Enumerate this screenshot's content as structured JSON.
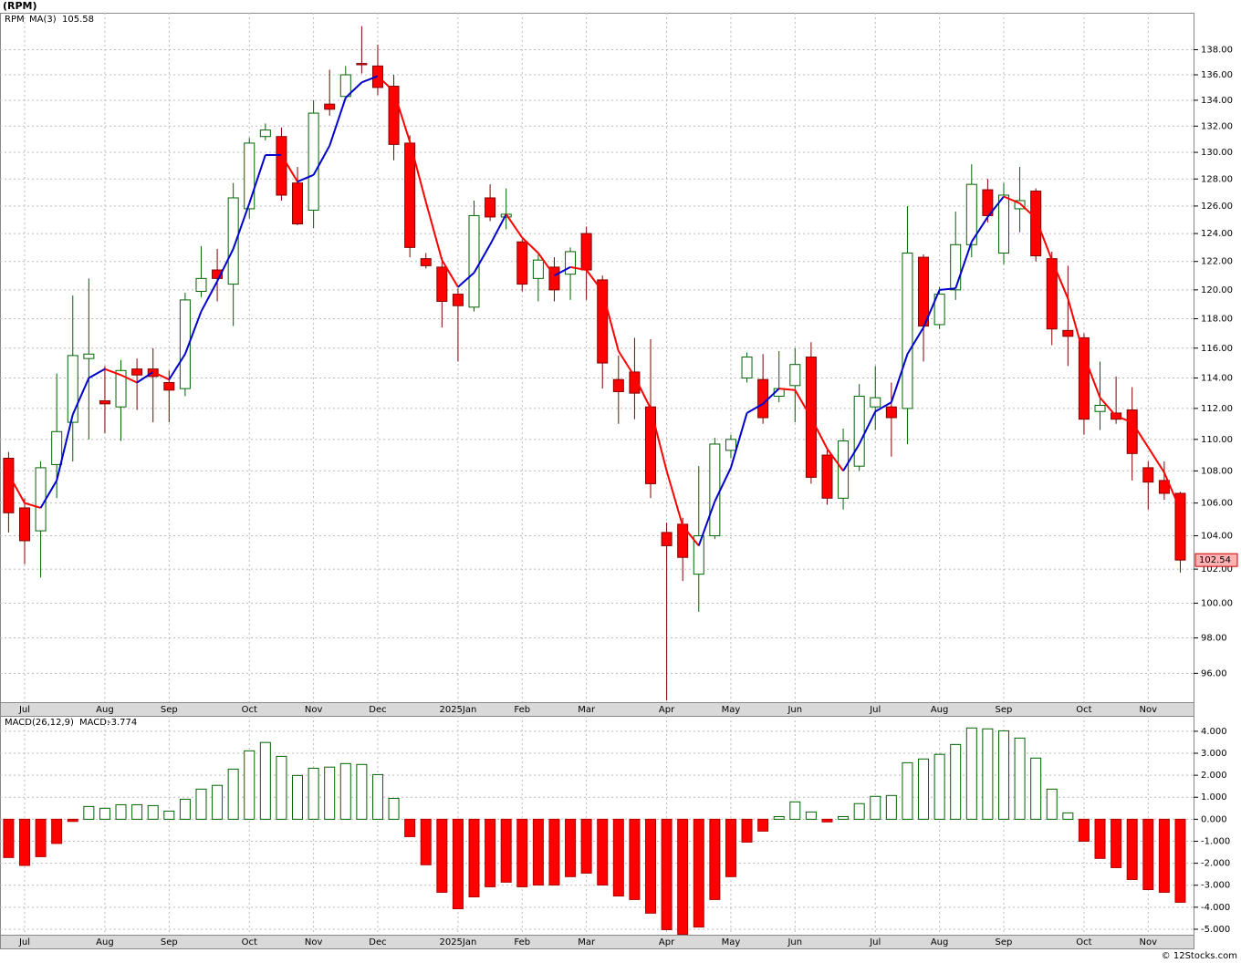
{
  "footer": "© 12Stocks.com",
  "chart_data": [
    {
      "type": "candlestick",
      "title": "(RPM)",
      "symbol": "RPM",
      "symbol_color": "#006400",
      "log_scale": true,
      "grid": true,
      "up_color": "#006400",
      "down_color": "#ff0000",
      "categories": [
        null,
        "Jul",
        null,
        null,
        null,
        null,
        "Aug",
        null,
        null,
        null,
        "Sep",
        null,
        null,
        null,
        null,
        "Oct",
        null,
        null,
        null,
        "Nov",
        null,
        null,
        null,
        "Dec",
        null,
        null,
        null,
        null,
        "2025Jan",
        null,
        null,
        null,
        "Feb",
        null,
        null,
        null,
        "Mar",
        null,
        null,
        null,
        null,
        "Apr",
        null,
        null,
        null,
        "May",
        null,
        null,
        null,
        "Jun",
        null,
        null,
        null,
        null,
        "Jul",
        null,
        null,
        null,
        "Aug",
        null,
        null,
        null,
        "Sep",
        null,
        null,
        null,
        null,
        "Oct",
        null,
        null,
        null,
        "Nov",
        null,
        null
      ],
      "open": [
        108.8,
        105.7,
        104.3,
        108.4,
        111.1,
        115.3,
        112.5,
        112.1,
        114.6,
        114.6,
        113.7,
        113.3,
        119.9,
        121.4,
        120.4,
        125.8,
        131.2,
        131.2,
        127.7,
        125.7,
        133.7,
        134.3,
        136.9,
        136.7,
        135.1,
        130.7,
        122.2,
        121.6,
        119.7,
        118.8,
        126.6,
        125.2,
        123.4,
        120.8,
        121.6,
        121.1,
        124.0,
        120.7,
        113.9,
        114.4,
        112.1,
        104.2,
        104.7,
        101.7,
        104.0,
        109.3,
        114.0,
        113.9,
        112.8,
        113.5,
        115.4,
        109.0,
        106.3,
        108.3,
        112.1,
        112.1,
        112.0,
        122.3,
        117.6,
        120.0,
        123.2,
        127.2,
        122.6,
        125.8,
        127.1,
        122.2,
        117.2,
        116.7,
        111.8,
        111.7,
        111.9,
        108.2,
        107.4,
        106.6
      ],
      "high": [
        109.2,
        106.3,
        108.6,
        114.3,
        119.6,
        120.8,
        114.8,
        115.2,
        115.3,
        116.0,
        114.5,
        119.8,
        123.1,
        122.9,
        127.7,
        131.1,
        132.2,
        131.9,
        128.9,
        134.0,
        136.4,
        136.7,
        139.9,
        138.4,
        136.0,
        131.3,
        122.6,
        122.3,
        120.1,
        126.4,
        127.6,
        127.3,
        123.6,
        122.5,
        122.3,
        123.0,
        124.5,
        121.0,
        115.5,
        116.7,
        116.6,
        104.8,
        105.1,
        108.3,
        110.1,
        110.3,
        115.7,
        115.6,
        115.8,
        116.0,
        116.4,
        109.3,
        110.7,
        113.6,
        114.8,
        113.7,
        126.0,
        122.5,
        120.2,
        125.6,
        129.1,
        128.0,
        127.7,
        128.9,
        127.3,
        122.7,
        121.7,
        117.0,
        115.1,
        114.1,
        113.4,
        108.6,
        108.6,
        106.7
      ],
      "low": [
        104.2,
        102.3,
        101.5,
        106.3,
        108.6,
        110.0,
        110.4,
        109.9,
        111.9,
        111.1,
        111.1,
        112.8,
        119.5,
        119.2,
        117.5,
        125.1,
        130.9,
        126.4,
        124.6,
        124.4,
        132.8,
        134.0,
        136.1,
        134.4,
        129.4,
        122.3,
        121.5,
        117.4,
        115.1,
        118.5,
        124.9,
        124.3,
        119.9,
        119.2,
        119.2,
        119.3,
        119.3,
        113.3,
        111.0,
        111.3,
        106.3,
        94.5,
        101.3,
        99.5,
        103.8,
        108.8,
        113.7,
        111.0,
        112.4,
        111.1,
        107.2,
        105.9,
        105.6,
        108.0,
        110.6,
        108.9,
        109.7,
        115.1,
        117.3,
        119.3,
        122.3,
        124.8,
        121.8,
        124.1,
        122.0,
        116.2,
        114.8,
        110.3,
        110.6,
        111.0,
        107.4,
        105.6,
        106.2,
        101.8
      ],
      "close": [
        105.4,
        103.7,
        108.2,
        110.5,
        115.5,
        115.6,
        112.3,
        114.5,
        114.2,
        114.1,
        113.2,
        119.3,
        120.8,
        120.8,
        126.6,
        130.7,
        131.7,
        126.8,
        124.7,
        133.0,
        133.3,
        136.0,
        136.8,
        135.0,
        130.6,
        123.0,
        121.7,
        119.2,
        118.9,
        125.3,
        125.2,
        125.4,
        120.4,
        122.1,
        120.0,
        122.7,
        121.4,
        115.0,
        113.1,
        113.0,
        107.2,
        103.4,
        102.7,
        104.0,
        109.7,
        110.0,
        115.4,
        111.4,
        113.3,
        114.9,
        107.6,
        106.3,
        109.9,
        112.8,
        112.7,
        111.4,
        122.6,
        117.5,
        119.7,
        123.2,
        127.6,
        125.3,
        126.8,
        126.4,
        122.4,
        117.3,
        116.8,
        111.3,
        112.2,
        111.3,
        109.1,
        107.3,
        106.6,
        102.54
      ],
      "series": [
        {
          "name": "MA(3)",
          "color": "#0000cc",
          "down_color": "#ff0000",
          "values": [
            107.8,
            106.0,
            105.7,
            107.4,
            111.6,
            114.0,
            114.6,
            114.2,
            113.7,
            114.4,
            113.9,
            115.6,
            118.5,
            120.6,
            122.9,
            126.2,
            129.8,
            129.8,
            127.8,
            128.3,
            130.5,
            134.2,
            135.4,
            135.9,
            134.7,
            130.8,
            126.3,
            122.1,
            120.2,
            121.2,
            123.2,
            125.4,
            123.7,
            122.6,
            121.0,
            121.6,
            121.4,
            119.9,
            115.8,
            114.1,
            112.0,
            108.0,
            104.6,
            103.4,
            106.1,
            108.2,
            111.7,
            112.3,
            113.3,
            113.2,
            111.4,
            109.4,
            108.0,
            109.7,
            111.8,
            112.4,
            115.6,
            117.4,
            120.0,
            120.1,
            123.4,
            125.2,
            126.7,
            126.2,
            125.1,
            122.1,
            119.4,
            115.5,
            112.7,
            111.5,
            111.1,
            109.5,
            107.9,
            105.58
          ]
        }
      ],
      "ylim": [
        94.4,
        141
      ],
      "yticks": [
        {
          "value": 96,
          "label": "96.00"
        },
        {
          "value": 98,
          "label": "98.00"
        },
        {
          "value": 100,
          "label": "100.00"
        },
        {
          "value": 102,
          "label": "102.00"
        },
        {
          "value": 104,
          "label": "104.00"
        },
        {
          "value": 106,
          "label": "106.00"
        },
        {
          "value": 108,
          "label": "108.00"
        },
        {
          "value": 110,
          "label": "110.00"
        },
        {
          "value": 112,
          "label": "112.00"
        },
        {
          "value": 114,
          "label": "114.00"
        },
        {
          "value": 116,
          "label": "116.00"
        },
        {
          "value": 118,
          "label": "118.00"
        },
        {
          "value": 120,
          "label": "120.00"
        },
        {
          "value": 122,
          "label": "122.00"
        },
        {
          "value": 124,
          "label": "124.00"
        },
        {
          "value": 126,
          "label": "126.00"
        },
        {
          "value": 128,
          "label": "128.00"
        },
        {
          "value": 130,
          "label": "130.00"
        },
        {
          "value": 132,
          "label": "132.00"
        },
        {
          "value": 134,
          "label": "134.00"
        },
        {
          "value": 136,
          "label": "136.00"
        },
        {
          "value": 138,
          "label": "138.00"
        }
      ]
    },
    {
      "type": "bar",
      "title": "MACD(26,12,9)",
      "series_name": "MACD:",
      "series_color": "#0000cc",
      "grid": true,
      "up_color": "#006400",
      "down_color": "#ff0000",
      "values": [
        -1.74,
        -2.1,
        -1.7,
        -1.1,
        -0.1,
        0.58,
        0.5,
        0.66,
        0.66,
        0.62,
        0.37,
        0.91,
        1.37,
        1.54,
        2.28,
        3.11,
        3.49,
        2.86,
        1.99,
        2.32,
        2.37,
        2.53,
        2.49,
        2.03,
        0.95,
        -0.79,
        -2.07,
        -3.32,
        -4.07,
        -3.53,
        -3.07,
        -2.86,
        -3.07,
        -2.99,
        -2.99,
        -2.61,
        -2.45,
        -2.99,
        -3.49,
        -3.65,
        -4.27,
        -5.02,
        -5.23,
        -4.9,
        -3.65,
        -2.61,
        -1.04,
        -0.54,
        0.12,
        0.79,
        0.33,
        -0.12,
        0.12,
        0.71,
        1.04,
        1.08,
        2.57,
        2.74,
        2.95,
        3.4,
        4.15,
        4.11,
        4.02,
        3.69,
        2.78,
        1.37,
        0.29,
        -1.0,
        -1.78,
        -2.2,
        -2.74,
        -3.2,
        -3.32,
        -3.774
      ],
      "ylim": [
        -5.25,
        4.7
      ],
      "yticks": [
        {
          "value": 4,
          "label": "4.000"
        },
        {
          "value": 3,
          "label": "3.000"
        },
        {
          "value": 2,
          "label": "2.000"
        },
        {
          "value": 1,
          "label": "1.000"
        },
        {
          "value": 0,
          "label": "0.000"
        },
        {
          "value": -1,
          "label": "-1.000"
        },
        {
          "value": -2,
          "label": "-2.000"
        },
        {
          "value": -3,
          "label": "-3.000"
        },
        {
          "value": -4,
          "label": "-4.000"
        },
        {
          "value": -5,
          "label": "-5.000"
        }
      ]
    }
  ]
}
